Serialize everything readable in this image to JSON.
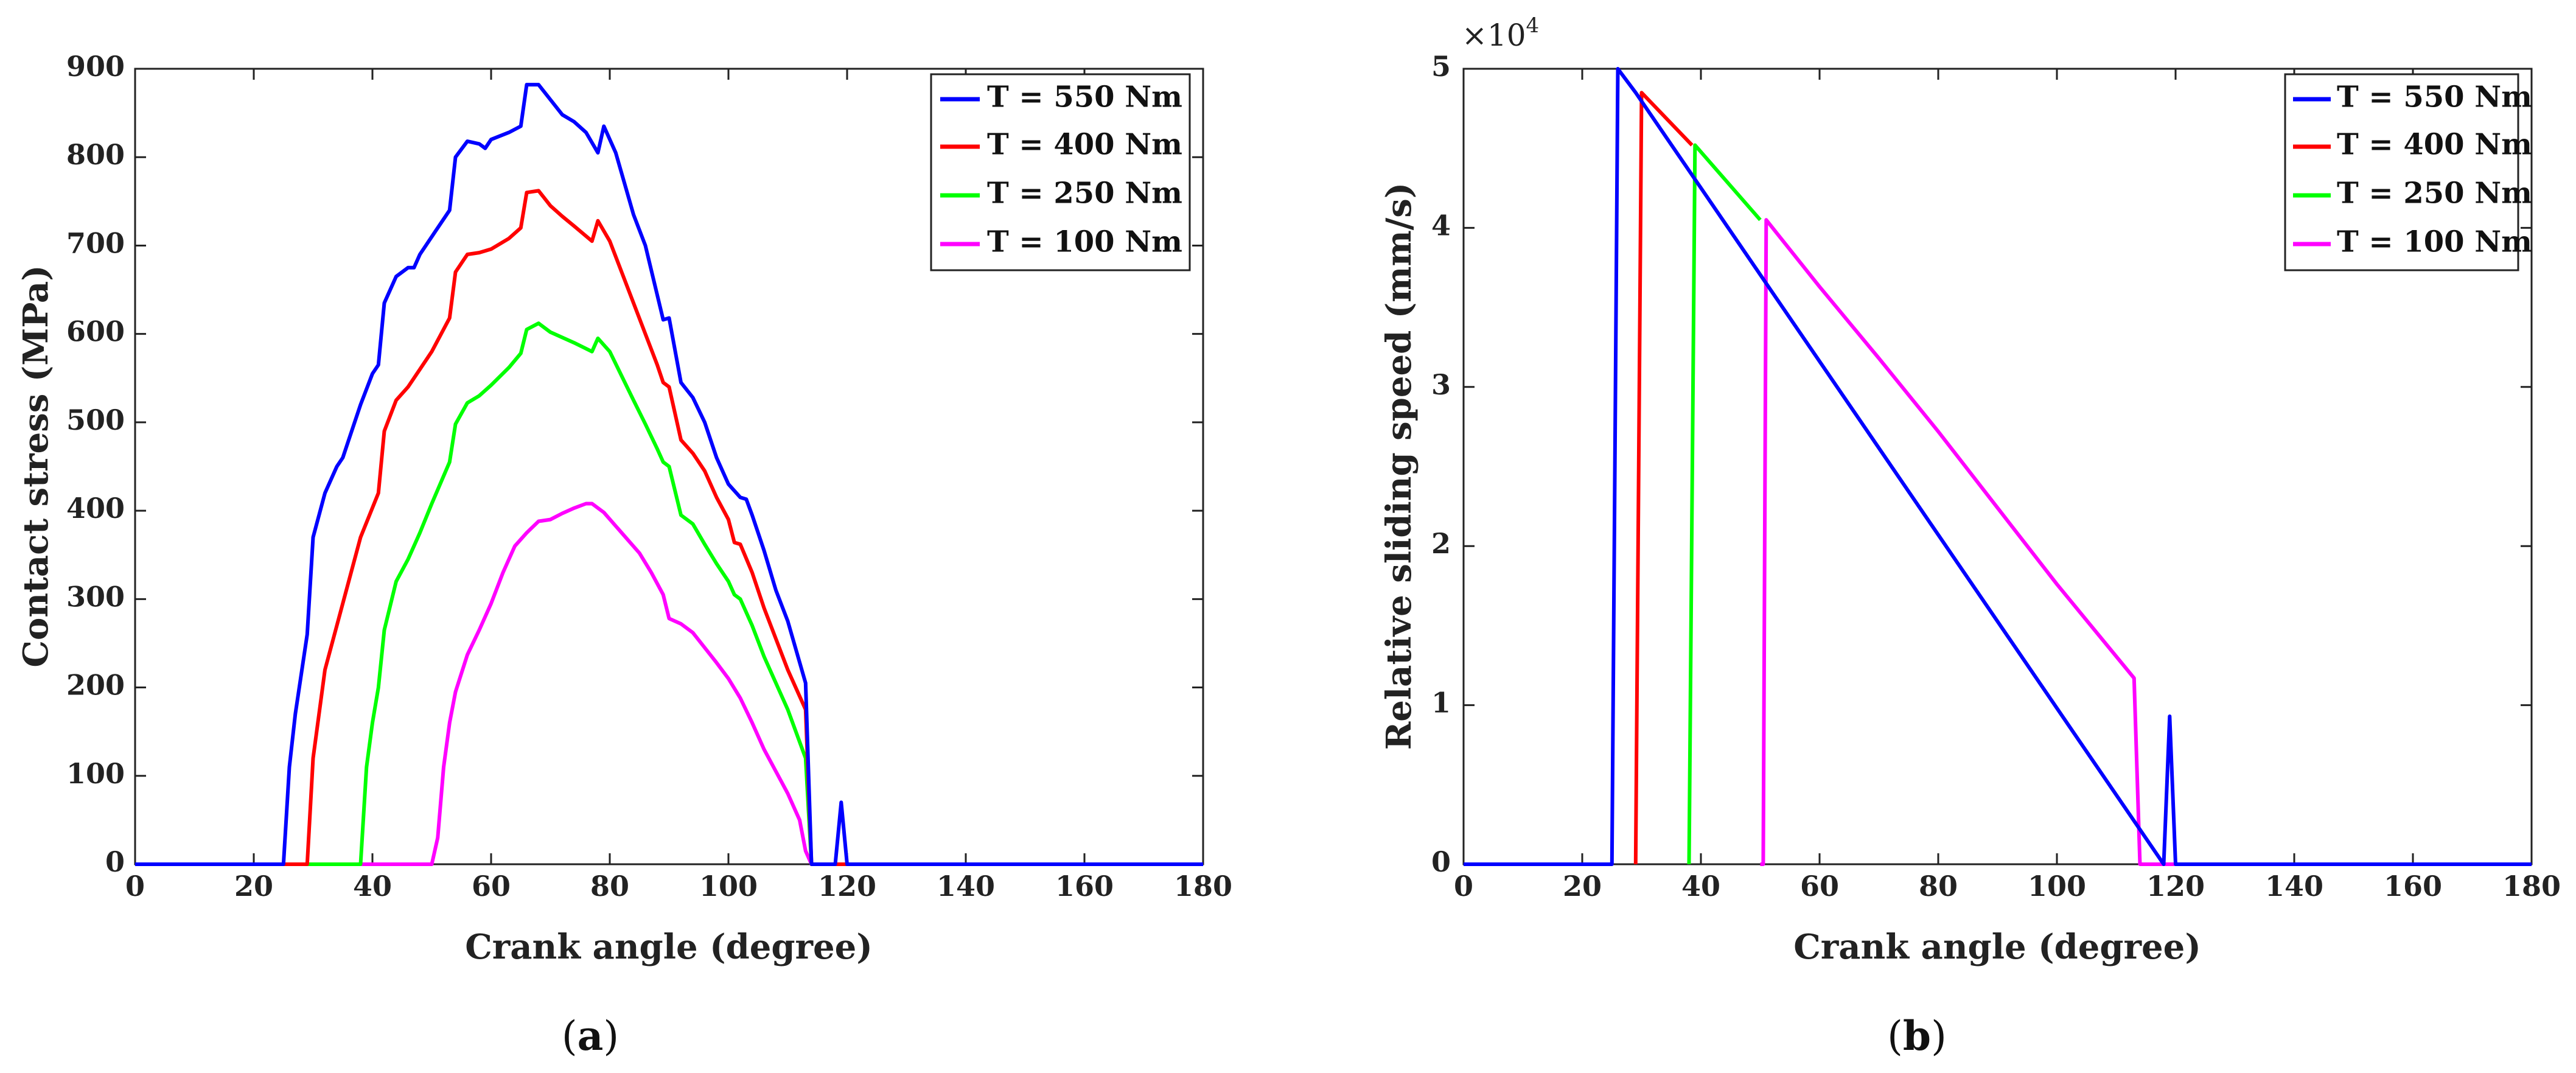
{
  "chart_data": [
    {
      "type": "line",
      "panel": "a",
      "xlabel": "Crank angle (degree)",
      "ylabel": "Contact stress (MPa)",
      "xlim": [
        0,
        180
      ],
      "ylim": [
        0,
        900
      ],
      "xticks": [
        "0",
        "20",
        "40",
        "60",
        "80",
        "100",
        "120",
        "140",
        "160",
        "180"
      ],
      "yticks": [
        "0",
        "100",
        "200",
        "300",
        "400",
        "500",
        "600",
        "700",
        "800",
        "900"
      ],
      "legend_position": "top-right",
      "series": [
        {
          "name": "T = 550 Nm",
          "color": "#0000ff",
          "points": [
            [
              0,
              0
            ],
            [
              25,
              0
            ],
            [
              26,
              110
            ],
            [
              27,
              170
            ],
            [
              29,
              260
            ],
            [
              30,
              370
            ],
            [
              32,
              420
            ],
            [
              34,
              450
            ],
            [
              35,
              460
            ],
            [
              36,
              480
            ],
            [
              38,
              520
            ],
            [
              40,
              555
            ],
            [
              41,
              565
            ],
            [
              42,
              635
            ],
            [
              44,
              665
            ],
            [
              46,
              675
            ],
            [
              47,
              675
            ],
            [
              48,
              690
            ],
            [
              50,
              710
            ],
            [
              53,
              740
            ],
            [
              54,
              800
            ],
            [
              56,
              818
            ],
            [
              58,
              815
            ],
            [
              59,
              810
            ],
            [
              60,
              820
            ],
            [
              63,
              828
            ],
            [
              65,
              835
            ],
            [
              66,
              882
            ],
            [
              68,
              882
            ],
            [
              70,
              865
            ],
            [
              72,
              848
            ],
            [
              74,
              840
            ],
            [
              76,
              828
            ],
            [
              78,
              805
            ],
            [
              79,
              835
            ],
            [
              81,
              805
            ],
            [
              84,
              735
            ],
            [
              86,
              700
            ],
            [
              89,
              616
            ],
            [
              90,
              618
            ],
            [
              92,
              545
            ],
            [
              94,
              528
            ],
            [
              96,
              500
            ],
            [
              98,
              460
            ],
            [
              100,
              430
            ],
            [
              102,
              415
            ],
            [
              103,
              413
            ],
            [
              104,
              395
            ],
            [
              106,
              355
            ],
            [
              108,
              310
            ],
            [
              110,
              275
            ],
            [
              113,
              205
            ],
            [
              114,
              0
            ],
            [
              118,
              0
            ],
            [
              119,
              70
            ],
            [
              120,
              0
            ],
            [
              180,
              0
            ]
          ]
        },
        {
          "name": "T = 400 Nm",
          "color": "#ff0000",
          "points": [
            [
              0,
              0
            ],
            [
              29,
              0
            ],
            [
              30,
              120
            ],
            [
              32,
              220
            ],
            [
              34,
              270
            ],
            [
              36,
              320
            ],
            [
              38,
              370
            ],
            [
              41,
              420
            ],
            [
              42,
              490
            ],
            [
              44,
              525
            ],
            [
              46,
              540
            ],
            [
              48,
              560
            ],
            [
              50,
              580
            ],
            [
              53,
              618
            ],
            [
              54,
              670
            ],
            [
              56,
              690
            ],
            [
              58,
              692
            ],
            [
              60,
              696
            ],
            [
              63,
              708
            ],
            [
              65,
              720
            ],
            [
              66,
              760
            ],
            [
              68,
              762
            ],
            [
              70,
              745
            ],
            [
              72,
              733
            ],
            [
              74,
              722
            ],
            [
              77,
              705
            ],
            [
              78,
              728
            ],
            [
              80,
              705
            ],
            [
              84,
              635
            ],
            [
              86,
              600
            ],
            [
              88,
              565
            ],
            [
              89,
              545
            ],
            [
              90,
              540
            ],
            [
              92,
              480
            ],
            [
              94,
              465
            ],
            [
              96,
              445
            ],
            [
              98,
              415
            ],
            [
              100,
              390
            ],
            [
              101,
              364
            ],
            [
              102,
              362
            ],
            [
              104,
              330
            ],
            [
              106,
              290
            ],
            [
              108,
              255
            ],
            [
              110,
              220
            ],
            [
              113,
              175
            ],
            [
              114,
              0
            ],
            [
              180,
              0
            ]
          ]
        },
        {
          "name": "T = 250 Nm",
          "color": "#00ff00",
          "points": [
            [
              0,
              0
            ],
            [
              38,
              0
            ],
            [
              39,
              110
            ],
            [
              40,
              160
            ],
            [
              41,
              200
            ],
            [
              42,
              265
            ],
            [
              44,
              320
            ],
            [
              46,
              345
            ],
            [
              48,
              375
            ],
            [
              50,
              408
            ],
            [
              53,
              455
            ],
            [
              54,
              498
            ],
            [
              56,
              522
            ],
            [
              58,
              530
            ],
            [
              60,
              542
            ],
            [
              63,
              562
            ],
            [
              65,
              578
            ],
            [
              66,
              605
            ],
            [
              68,
              612
            ],
            [
              70,
              602
            ],
            [
              72,
              596
            ],
            [
              74,
              590
            ],
            [
              77,
              580
            ],
            [
              78,
              595
            ],
            [
              80,
              580
            ],
            [
              84,
              525
            ],
            [
              86,
              498
            ],
            [
              88,
              470
            ],
            [
              89,
              455
            ],
            [
              90,
              450
            ],
            [
              92,
              395
            ],
            [
              94,
              385
            ],
            [
              96,
              362
            ],
            [
              98,
              340
            ],
            [
              100,
              320
            ],
            [
              101,
              305
            ],
            [
              102,
              300
            ],
            [
              104,
              270
            ],
            [
              106,
              235
            ],
            [
              108,
              205
            ],
            [
              110,
              175
            ],
            [
              113,
              120
            ],
            [
              114,
              0
            ],
            [
              180,
              0
            ]
          ]
        },
        {
          "name": "T = 100 Nm",
          "color": "#ff00ff",
          "points": [
            [
              0,
              0
            ],
            [
              50,
              0
            ],
            [
              51,
              30
            ],
            [
              52,
              110
            ],
            [
              53,
              160
            ],
            [
              54,
              195
            ],
            [
              56,
              237
            ],
            [
              58,
              265
            ],
            [
              60,
              295
            ],
            [
              62,
              330
            ],
            [
              64,
              360
            ],
            [
              66,
              375
            ],
            [
              68,
              388
            ],
            [
              70,
              390
            ],
            [
              72,
              397
            ],
            [
              74,
              403
            ],
            [
              76,
              408
            ],
            [
              77,
              408
            ],
            [
              79,
              398
            ],
            [
              82,
              375
            ],
            [
              85,
              352
            ],
            [
              87,
              330
            ],
            [
              89,
              305
            ],
            [
              90,
              278
            ],
            [
              92,
              272
            ],
            [
              94,
              262
            ],
            [
              96,
              245
            ],
            [
              98,
              228
            ],
            [
              100,
              210
            ],
            [
              102,
              188
            ],
            [
              104,
              160
            ],
            [
              106,
              130
            ],
            [
              108,
              105
            ],
            [
              110,
              80
            ],
            [
              112,
              50
            ],
            [
              113,
              15
            ],
            [
              114,
              0
            ],
            [
              180,
              0
            ]
          ]
        }
      ]
    },
    {
      "type": "line",
      "panel": "b",
      "xlabel": "Crank angle (degree)",
      "ylabel": "Relative sliding speed (mm/s)",
      "y_multiplier_base": "×10",
      "y_multiplier_exp": "4",
      "xlim": [
        0,
        180
      ],
      "ylim": [
        0,
        5
      ],
      "xticks": [
        "0",
        "20",
        "40",
        "60",
        "80",
        "100",
        "120",
        "140",
        "160",
        "180"
      ],
      "yticks": [
        "0",
        "1",
        "2",
        "3",
        "4",
        "5"
      ],
      "legend_position": "top-right",
      "series": [
        {
          "name": "T = 550 Nm",
          "color": "#0000ff",
          "points": [
            [
              0,
              0
            ],
            [
              25,
              0
            ],
            [
              26,
              5.0
            ],
            [
              29,
              4.85
            ],
            [
              118,
              0
            ],
            [
              119,
              0.93
            ],
            [
              120,
              0
            ],
            [
              180,
              0
            ]
          ]
        },
        {
          "name": "T = 400 Nm",
          "color": "#ff0000",
          "points": [
            [
              29,
              0
            ],
            [
              30,
              4.85
            ],
            [
              38.5,
              4.52
            ]
          ]
        },
        {
          "name": "T = 250 Nm",
          "color": "#00ff00",
          "points": [
            [
              38,
              0
            ],
            [
              39,
              4.52
            ],
            [
              50,
              4.05
            ]
          ]
        },
        {
          "name": "T = 100 Nm",
          "color": "#ff00ff",
          "points": [
            [
              50,
              0
            ],
            [
              50.5,
              0
            ],
            [
              51,
              4.05
            ],
            [
              60,
              3.63
            ],
            [
              70,
              3.18
            ],
            [
              80,
              2.72
            ],
            [
              90,
              2.24
            ],
            [
              100,
              1.76
            ],
            [
              113,
              1.17
            ],
            [
              114,
              0
            ],
            [
              180,
              0
            ]
          ]
        }
      ]
    }
  ],
  "panels": {
    "a": {
      "open": "(",
      "letter": "a",
      "close": ")"
    },
    "b": {
      "open": "(",
      "letter": "b",
      "close": ")"
    }
  }
}
